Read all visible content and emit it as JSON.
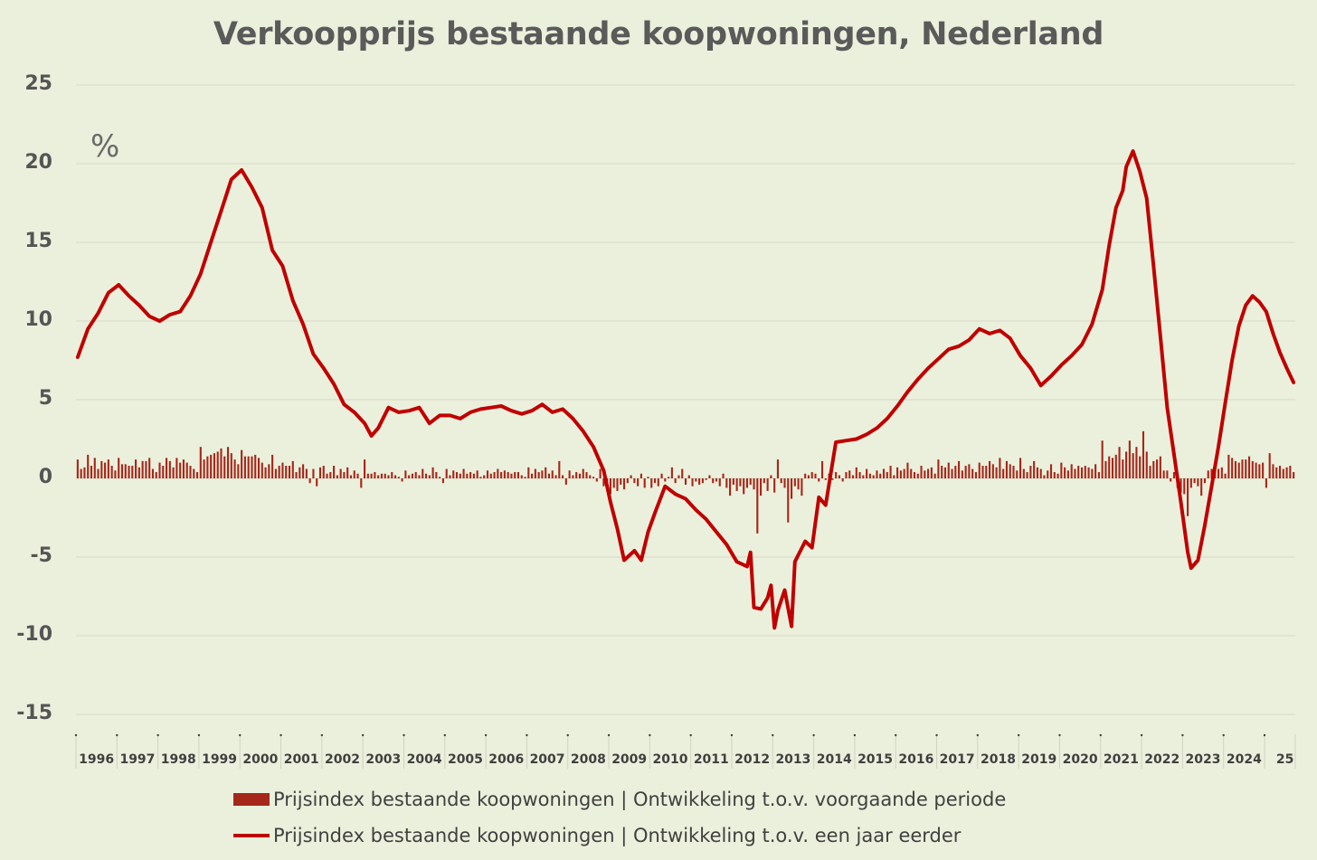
{
  "chart_data": {
    "type": "bar+line",
    "title": "Verkoopprijs bestaande koopwoningen, Nederland",
    "unit": "%",
    "ylim": [
      -15,
      25
    ],
    "yticks": [
      "25",
      "20",
      "15",
      "10",
      "5",
      "0",
      "-5",
      "-10",
      "-15"
    ],
    "x_start": "1996-01",
    "x_end": "2025-09",
    "x_ticks": [
      "1996",
      "1997",
      "1998",
      "1999",
      "2000",
      "2001",
      "2002",
      "2003",
      "2004",
      "2005",
      "2006",
      "2007",
      "2008",
      "2009",
      "2010",
      "2011",
      "2012",
      "2013",
      "2014",
      "2015",
      "2016",
      "2017",
      "2018",
      "2019",
      "2020",
      "2021",
      "2022",
      "2023",
      "2024",
      "25"
    ],
    "grid": true,
    "legend_position": "bottom",
    "series": [
      {
        "name": "Prijsindex bestaande koopwoningen | Ontwikkeling  t.o.v. voorgaande periode",
        "type": "bar",
        "color": "#a5271a",
        "frequency": "monthly",
        "values_by_year": [
          [
            1.2,
            0.6,
            0.7,
            1.5,
            0.8,
            1.3,
            0.6,
            1.1,
            1.0,
            1.2,
            0.8,
            0.5
          ],
          [
            1.3,
            0.9,
            0.9,
            0.8,
            0.8,
            1.2,
            0.7,
            1.1,
            1.1,
            1.3,
            0.6,
            0.4
          ],
          [
            1.0,
            0.8,
            1.3,
            1.1,
            0.7,
            1.3,
            1.0,
            1.2,
            1.0,
            0.8,
            0.6,
            0.4
          ],
          [
            2.0,
            1.2,
            1.4,
            1.5,
            1.6,
            1.7,
            1.9,
            1.4,
            2.0,
            1.6,
            1.2,
            0.9
          ],
          [
            1.8,
            1.4,
            1.4,
            1.4,
            1.5,
            1.3,
            1.0,
            0.7,
            0.9,
            1.5,
            0.6,
            0.8
          ],
          [
            1.0,
            0.8,
            0.8,
            1.1,
            0.4,
            0.7,
            0.9,
            0.6,
            -0.3,
            0.6,
            -0.5,
            0.7
          ],
          [
            0.8,
            0.3,
            0.4,
            0.8,
            0.2,
            0.6,
            0.4,
            0.7,
            0.2,
            0.5,
            0.3,
            -0.6
          ],
          [
            1.2,
            0.3,
            0.3,
            0.4,
            0.2,
            0.3,
            0.3,
            0.2,
            0.4,
            0.2,
            0.1,
            -0.2
          ],
          [
            0.5,
            0.2,
            0.3,
            0.4,
            0.2,
            0.6,
            0.3,
            0.2,
            0.7,
            0.4,
            0.1,
            -0.3
          ],
          [
            0.6,
            0.2,
            0.5,
            0.4,
            0.3,
            0.6,
            0.3,
            0.4,
            0.3,
            0.5,
            0.1,
            0.2
          ],
          [
            0.5,
            0.3,
            0.4,
            0.6,
            0.4,
            0.5,
            0.4,
            0.3,
            0.4,
            0.4,
            0.2,
            0.1
          ],
          [
            0.7,
            0.3,
            0.6,
            0.4,
            0.5,
            0.7,
            0.3,
            0.5,
            0.2,
            1.1,
            0.2,
            -0.4
          ],
          [
            0.5,
            0.2,
            0.4,
            0.3,
            0.6,
            0.4,
            0.2,
            0.1,
            -0.2,
            0.6,
            -0.5,
            -0.8
          ],
          [
            -1.0,
            -0.6,
            -0.8,
            -0.4,
            -0.7,
            -0.3,
            0.2,
            -0.3,
            -0.5,
            0.3,
            -0.6,
            0.1
          ],
          [
            -0.6,
            -0.3,
            -0.5,
            0.3,
            -0.2,
            0.1,
            0.7,
            -0.3,
            0.2,
            0.6,
            -0.4,
            0.2
          ],
          [
            -0.5,
            -0.2,
            -0.4,
            -0.3,
            -0.1,
            0.2,
            -0.3,
            -0.2,
            -0.5,
            0.3,
            -0.6,
            -1.1
          ],
          [
            -0.4,
            -0.8,
            -0.5,
            -1.0,
            -0.6,
            -0.4,
            -0.7,
            -3.5,
            -1.1,
            -0.3,
            -0.8,
            0.2
          ],
          [
            -0.9,
            1.2,
            -0.3,
            -0.6,
            -2.8,
            -1.3,
            -0.5,
            -0.7,
            -1.1,
            0.3,
            0.2,
            0.4
          ],
          [
            0.3,
            -0.2,
            1.1,
            -0.1,
            0.3,
            -0.1,
            0.4,
            0.2,
            -0.2,
            0.4,
            0.5,
            0.2
          ],
          [
            0.7,
            0.4,
            0.2,
            0.6,
            0.3,
            0.2,
            0.5,
            0.3,
            0.6,
            0.4,
            0.8,
            0.2
          ],
          [
            0.7,
            0.5,
            0.6,
            1.0,
            0.6,
            0.4,
            0.3,
            0.8,
            0.5,
            0.6,
            0.7,
            0.3
          ],
          [
            1.2,
            0.8,
            0.7,
            1.0,
            0.6,
            0.8,
            1.1,
            0.5,
            0.8,
            0.9,
            0.6,
            0.4
          ],
          [
            1.0,
            0.8,
            0.8,
            1.1,
            0.9,
            0.7,
            1.3,
            0.6,
            1.1,
            0.9,
            0.8,
            0.5
          ],
          [
            1.3,
            0.6,
            0.4,
            0.8,
            1.1,
            0.7,
            0.6,
            0.2,
            0.5,
            0.9,
            0.4,
            0.3
          ],
          [
            1.0,
            0.7,
            0.5,
            0.9,
            0.6,
            0.8,
            0.7,
            0.8,
            0.7,
            0.6,
            0.9,
            0.4
          ],
          [
            2.4,
            1.1,
            1.4,
            1.3,
            1.5,
            2.0,
            1.2,
            1.7,
            2.4,
            1.6,
            2.0,
            1.4
          ],
          [
            3.0,
            1.7,
            0.8,
            1.1,
            1.2,
            1.4,
            0.5,
            0.5,
            -0.2,
            0.4,
            -0.6,
            -0.9
          ],
          [
            -1.0,
            -2.4,
            -0.6,
            -0.3,
            -0.5,
            -1.1,
            -0.3,
            0.5,
            0.6,
            0.5,
            0.6,
            0.7
          ],
          [
            0.3,
            1.5,
            1.3,
            1.1,
            1.0,
            1.2,
            1.2,
            1.4,
            1.1,
            1.0,
            0.9,
            1.0
          ],
          [
            -0.6,
            1.6,
            0.9,
            0.7,
            0.8,
            0.6,
            0.7,
            0.8,
            0.4,
            0.6,
            0.5,
            0.2
          ]
        ]
      },
      {
        "name": "Prijsindex bestaande koopwoningen | Ontwikkeling  t.o.v. een jaar eerder",
        "type": "line",
        "color": "#c00000",
        "points": [
          [
            "1996-01",
            7.7
          ],
          [
            "1996-04",
            9.5
          ],
          [
            "1996-07",
            10.5
          ],
          [
            "1996-10",
            11.8
          ],
          [
            "1997-01",
            12.3
          ],
          [
            "1997-04",
            11.6
          ],
          [
            "1997-07",
            11.0
          ],
          [
            "1997-10",
            10.3
          ],
          [
            "1998-01",
            10.0
          ],
          [
            "1998-04",
            10.4
          ],
          [
            "1998-07",
            10.6
          ],
          [
            "1998-10",
            11.6
          ],
          [
            "1999-01",
            13.0
          ],
          [
            "1999-04",
            15.0
          ],
          [
            "1999-07",
            17.0
          ],
          [
            "1999-10",
            19.0
          ],
          [
            "2000-01",
            19.6
          ],
          [
            "2000-04",
            18.5
          ],
          [
            "2000-07",
            17.2
          ],
          [
            "2000-10",
            14.5
          ],
          [
            "2001-01",
            13.5
          ],
          [
            "2001-04",
            11.3
          ],
          [
            "2001-07",
            9.8
          ],
          [
            "2001-10",
            7.9
          ],
          [
            "2002-01",
            7.0
          ],
          [
            "2002-04",
            6.0
          ],
          [
            "2002-07",
            4.7
          ],
          [
            "2002-10",
            4.2
          ],
          [
            "2003-01",
            3.5
          ],
          [
            "2003-03",
            2.7
          ],
          [
            "2003-05",
            3.2
          ],
          [
            "2003-08",
            4.5
          ],
          [
            "2003-11",
            4.2
          ],
          [
            "2004-02",
            4.3
          ],
          [
            "2004-05",
            4.5
          ],
          [
            "2004-08",
            3.5
          ],
          [
            "2004-11",
            4.0
          ],
          [
            "2005-02",
            4.0
          ],
          [
            "2005-05",
            3.8
          ],
          [
            "2005-08",
            4.2
          ],
          [
            "2005-11",
            4.4
          ],
          [
            "2006-02",
            4.5
          ],
          [
            "2006-05",
            4.6
          ],
          [
            "2006-08",
            4.3
          ],
          [
            "2006-11",
            4.1
          ],
          [
            "2007-02",
            4.3
          ],
          [
            "2007-05",
            4.7
          ],
          [
            "2007-08",
            4.2
          ],
          [
            "2007-11",
            4.4
          ],
          [
            "2008-02",
            3.8
          ],
          [
            "2008-05",
            3.0
          ],
          [
            "2008-08",
            2.0
          ],
          [
            "2008-11",
            0.5
          ],
          [
            "2009-01",
            -1.5
          ],
          [
            "2009-03",
            -3.2
          ],
          [
            "2009-05",
            -5.2
          ],
          [
            "2009-08",
            -4.6
          ],
          [
            "2009-10",
            -5.2
          ],
          [
            "2009-12",
            -3.4
          ],
          [
            "2010-02",
            -2.2
          ],
          [
            "2010-05",
            -0.5
          ],
          [
            "2010-08",
            -1.0
          ],
          [
            "2010-11",
            -1.3
          ],
          [
            "2011-02",
            -2.0
          ],
          [
            "2011-05",
            -2.6
          ],
          [
            "2011-08",
            -3.4
          ],
          [
            "2011-11",
            -4.2
          ],
          [
            "2012-02",
            -5.3
          ],
          [
            "2012-05",
            -5.6
          ],
          [
            "2012-06",
            -4.7
          ],
          [
            "2012-07",
            -8.2
          ],
          [
            "2012-09",
            -8.3
          ],
          [
            "2012-11",
            -7.6
          ],
          [
            "2012-12",
            -6.8
          ],
          [
            "2013-01",
            -9.5
          ],
          [
            "2013-02",
            -8.4
          ],
          [
            "2013-04",
            -7.1
          ],
          [
            "2013-06",
            -9.4
          ],
          [
            "2013-07",
            -5.3
          ],
          [
            "2013-10",
            -4.0
          ],
          [
            "2013-12",
            -4.4
          ],
          [
            "2014-02",
            -1.2
          ],
          [
            "2014-04",
            -1.7
          ],
          [
            "2014-07",
            2.3
          ],
          [
            "2014-10",
            2.4
          ],
          [
            "2015-01",
            2.5
          ],
          [
            "2015-04",
            2.8
          ],
          [
            "2015-07",
            3.2
          ],
          [
            "2015-10",
            3.8
          ],
          [
            "2016-01",
            4.6
          ],
          [
            "2016-04",
            5.5
          ],
          [
            "2016-07",
            6.3
          ],
          [
            "2016-10",
            7.0
          ],
          [
            "2017-01",
            7.6
          ],
          [
            "2017-04",
            8.2
          ],
          [
            "2017-07",
            8.4
          ],
          [
            "2017-10",
            8.8
          ],
          [
            "2018-01",
            9.5
          ],
          [
            "2018-04",
            9.2
          ],
          [
            "2018-07",
            9.4
          ],
          [
            "2018-10",
            8.9
          ],
          [
            "2019-01",
            7.8
          ],
          [
            "2019-04",
            7.0
          ],
          [
            "2019-07",
            5.9
          ],
          [
            "2019-10",
            6.5
          ],
          [
            "2020-01",
            7.2
          ],
          [
            "2020-04",
            7.8
          ],
          [
            "2020-07",
            8.5
          ],
          [
            "2020-10",
            9.8
          ],
          [
            "2021-01",
            12.0
          ],
          [
            "2021-03",
            14.8
          ],
          [
            "2021-05",
            17.2
          ],
          [
            "2021-07",
            18.3
          ],
          [
            "2021-08",
            19.8
          ],
          [
            "2021-10",
            20.8
          ],
          [
            "2021-12",
            19.5
          ],
          [
            "2022-02",
            17.8
          ],
          [
            "2022-04",
            13.5
          ],
          [
            "2022-06",
            9.0
          ],
          [
            "2022-08",
            4.5
          ],
          [
            "2022-10",
            1.5
          ],
          [
            "2022-12",
            -1.5
          ],
          [
            "2023-02",
            -4.7
          ],
          [
            "2023-03",
            -5.7
          ],
          [
            "2023-05",
            -5.2
          ],
          [
            "2023-07",
            -3.0
          ],
          [
            "2023-09",
            -0.5
          ],
          [
            "2023-11",
            2.0
          ],
          [
            "2024-01",
            4.8
          ],
          [
            "2024-03",
            7.5
          ],
          [
            "2024-05",
            9.7
          ],
          [
            "2024-07",
            11.0
          ],
          [
            "2024-09",
            11.6
          ],
          [
            "2024-11",
            11.2
          ],
          [
            "2025-01",
            10.6
          ],
          [
            "2025-03",
            9.2
          ],
          [
            "2025-05",
            8.0
          ],
          [
            "2025-07",
            7.0
          ],
          [
            "2025-09",
            6.1
          ]
        ]
      }
    ]
  }
}
